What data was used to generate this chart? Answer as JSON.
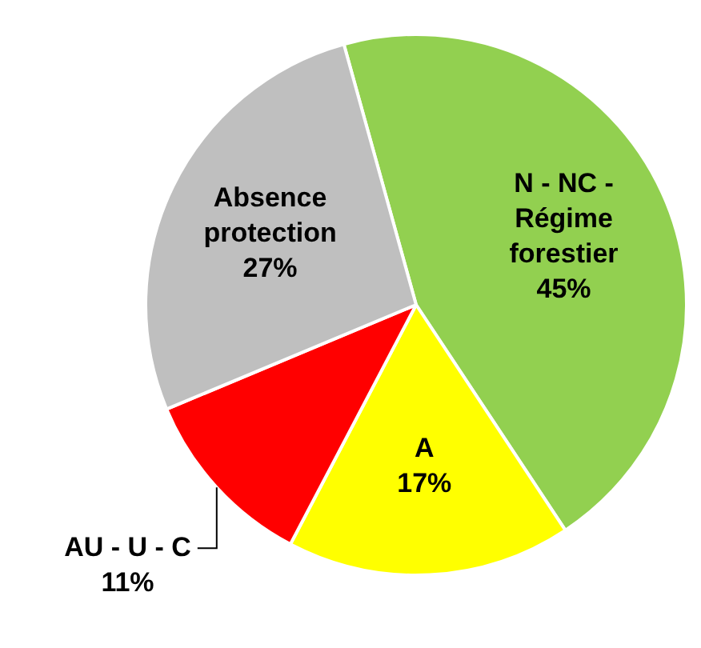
{
  "chart_data": {
    "type": "pie",
    "categories": [
      "N - NC - Régime forestier",
      "A",
      "AU - U - C",
      "Absence protection"
    ],
    "values": [
      45,
      17,
      11,
      27
    ],
    "value_labels": [
      "45%",
      "17%",
      "11%",
      "27%"
    ],
    "colors": [
      "#92d050",
      "#ffff00",
      "#ff0000",
      "#bfbfbf"
    ],
    "legend": false
  }
}
